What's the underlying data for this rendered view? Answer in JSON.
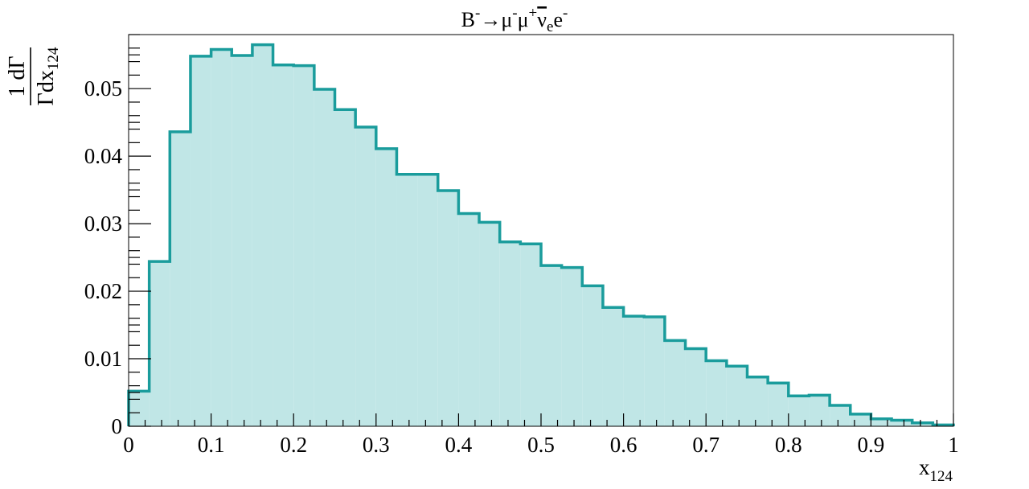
{
  "chart_data": {
    "type": "bar",
    "style": "filled step histogram",
    "title": {
      "base": "B",
      "sup1": "-",
      "arrow": "→μ",
      "sup2": "-",
      "mid": "μ",
      "sup3": "+",
      "nu": "ν",
      "nu_sub": "e",
      "tail": "e",
      "sup4": "-"
    },
    "xlabel": {
      "base": "x",
      "sub": "124"
    },
    "ylabel": {
      "num": "1 dΓ",
      "den_base": "Γdx",
      "den_sub": "124"
    },
    "xlim": [
      0,
      1
    ],
    "ylim": [
      0,
      0.058
    ],
    "x_ticks": [
      "0",
      "0.1",
      "0.2",
      "0.3",
      "0.4",
      "0.5",
      "0.6",
      "0.7",
      "0.8",
      "0.9",
      "1"
    ],
    "y_ticks": [
      "0",
      "0.01",
      "0.02",
      "0.03",
      "0.04",
      "0.05"
    ],
    "bin_width": 0.025,
    "values": [
      0.0052,
      0.0244,
      0.0436,
      0.0548,
      0.0558,
      0.0549,
      0.0565,
      0.0535,
      0.0534,
      0.0499,
      0.0469,
      0.0443,
      0.0411,
      0.0373,
      0.0373,
      0.0349,
      0.0315,
      0.0302,
      0.0273,
      0.027,
      0.0238,
      0.0235,
      0.0208,
      0.0176,
      0.0163,
      0.0162,
      0.0127,
      0.0115,
      0.0097,
      0.0089,
      0.0073,
      0.0064,
      0.0045,
      0.0046,
      0.0031,
      0.0018,
      0.0011,
      0.0009,
      0.0005,
      0.0002
    ],
    "line_color": "#1a9c9c",
    "fill_color": "#c0e6e6",
    "grid": false,
    "legend": "none"
  }
}
